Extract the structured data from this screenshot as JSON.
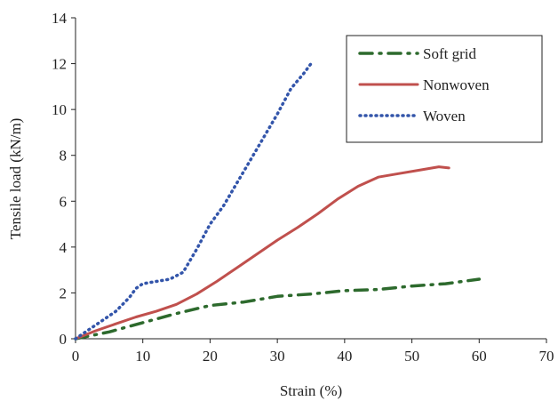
{
  "chart_data": {
    "type": "line",
    "title": "",
    "xlabel": "Strain (%)",
    "ylabel": "Tensile load (kN/m)",
    "xlim": [
      0,
      70
    ],
    "ylim": [
      0,
      14
    ],
    "xticks": [
      0,
      10,
      20,
      30,
      40,
      50,
      60,
      70
    ],
    "yticks": [
      0,
      2,
      4,
      6,
      8,
      10,
      12,
      14
    ],
    "grid": false,
    "legend_position": "top-right",
    "series": [
      {
        "name": "Soft grid",
        "color": "#2d6a2d",
        "dash": "dash-dot",
        "x": [
          0,
          5,
          10,
          15,
          20,
          25,
          30,
          35,
          40,
          45,
          50,
          55,
          60
        ],
        "y": [
          0,
          0.3,
          0.7,
          1.1,
          1.45,
          1.6,
          1.85,
          1.95,
          2.1,
          2.15,
          2.3,
          2.4,
          2.6
        ]
      },
      {
        "name": "Nonwoven",
        "color": "#c0504d",
        "dash": "solid",
        "x": [
          0,
          3,
          6,
          9,
          12,
          15,
          18,
          21,
          24,
          27,
          30,
          33,
          36,
          39,
          42,
          45,
          48,
          51,
          54,
          55.5
        ],
        "y": [
          0,
          0.35,
          0.65,
          0.95,
          1.2,
          1.5,
          1.95,
          2.5,
          3.1,
          3.7,
          4.3,
          4.85,
          5.45,
          6.1,
          6.65,
          7.05,
          7.2,
          7.35,
          7.5,
          7.45
        ]
      },
      {
        "name": "Woven",
        "color": "#3355aa",
        "dash": "dotted",
        "x": [
          0,
          2,
          4,
          6,
          8,
          9,
          10,
          12,
          14,
          16,
          18,
          20,
          22,
          24,
          26,
          28,
          30,
          32,
          34,
          35
        ],
        "y": [
          0,
          0.4,
          0.8,
          1.2,
          1.8,
          2.2,
          2.4,
          2.5,
          2.6,
          2.9,
          3.9,
          5.0,
          5.8,
          6.8,
          7.8,
          8.8,
          9.8,
          10.9,
          11.6,
          12.0
        ]
      }
    ]
  }
}
